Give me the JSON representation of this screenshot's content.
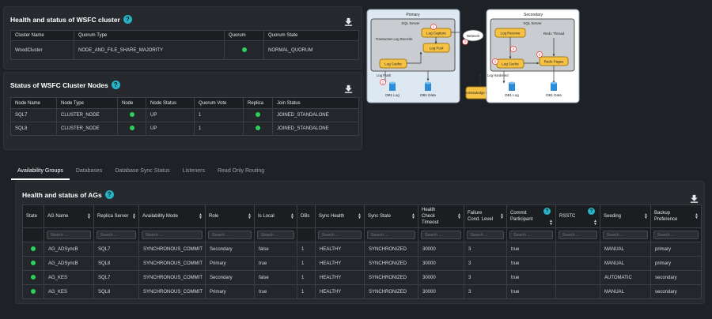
{
  "wsfc_cluster": {
    "title": "Health and status of WSFC cluster",
    "help": "?",
    "columns": [
      "Cluster Name",
      "Quorum Type",
      "Quorum",
      "Quorum State"
    ],
    "row": {
      "name": "WoodCluster",
      "quorum_type": "NODE_AND_FILE_SHARE_MAJORITY",
      "quorum_state": "NORMAL_QUORUM"
    }
  },
  "cluster_nodes": {
    "title": "Status of WSFC Cluster Nodes",
    "help": "?",
    "columns": [
      "Node Name",
      "Node Type",
      "Node",
      "Node Status",
      "Quorum Vote",
      "Replica",
      "Join Status"
    ],
    "rows": [
      {
        "name": "SQL7",
        "type": "CLUSTER_NODE",
        "status": "UP",
        "vote": "1",
        "join": "JOINED_STANDALONE"
      },
      {
        "name": "SQL8",
        "type": "CLUSTER_NODE",
        "status": "UP",
        "vote": "1",
        "join": "JOINED_STANDALONE"
      }
    ]
  },
  "diagram": {
    "primary": {
      "title": "Primary",
      "server": "SQL Server",
      "txn": "Transaction Log Records",
      "log_capture": "Log Capture",
      "log_pool": "Log Pool",
      "log_cache": "Log Cache",
      "log_flush": "Log Flush",
      "db1_log": "DB1 Log",
      "db1_data": "DB1 Data"
    },
    "network": "Network",
    "ack": "Acknowledge Commit",
    "secondary": {
      "title": "Secondary",
      "server": "SQL Server",
      "log_receive": "Log Receive",
      "redo_thread": "Redo Thread",
      "log_cache": "Log Cache",
      "redo_pages": "Redo Pages",
      "log_hardened": "Log Hardened",
      "db1_log": "DB1 Log",
      "db1_data": "DB1 Data"
    },
    "steps": [
      "1",
      "2",
      "3",
      "4",
      "5",
      "6"
    ]
  },
  "tabs": [
    "Availability Groups",
    "Databases",
    "Database Sync Status",
    "Listeners",
    "Read Only Routing"
  ],
  "ags": {
    "title": "Health and status of AGs",
    "help": "?",
    "columns": [
      "State",
      "AG Name",
      "Replica Server",
      "Availability Mode",
      "Role",
      "Is Local",
      "DBs",
      "Sync Health",
      "Sync State",
      "Health Check Timeout",
      "Failure Cond. Level",
      "Commit Participant",
      "RSSTC",
      "Seeding",
      "Backup Preference"
    ],
    "search_placeholder": "Search ...",
    "rows": [
      {
        "name": "AG_ADSyncB",
        "server": "SQL7",
        "mode": "SYNCHRONOUS_COMMIT",
        "role": "Secondary",
        "local": "false",
        "dbs": "1",
        "health": "HEALTHY",
        "sync": "SYNCHRONIZED",
        "timeout": "30000",
        "level": "3",
        "commit": "true",
        "rsstc": "",
        "seeding": "MANUAL",
        "backup": "primary"
      },
      {
        "name": "AG_ADSyncB",
        "server": "SQL8",
        "mode": "SYNCHRONOUS_COMMIT",
        "role": "Primary",
        "local": "true",
        "dbs": "1",
        "health": "HEALTHY",
        "sync": "SYNCHRONIZED",
        "timeout": "30000",
        "level": "3",
        "commit": "true",
        "rsstc": "",
        "seeding": "MANUAL",
        "backup": "primary"
      },
      {
        "name": "AG_KES",
        "server": "SQL7",
        "mode": "SYNCHRONOUS_COMMIT",
        "role": "Secondary",
        "local": "false",
        "dbs": "1",
        "health": "HEALTHY",
        "sync": "SYNCHRONIZED",
        "timeout": "30000",
        "level": "3",
        "commit": "true",
        "rsstc": "",
        "seeding": "AUTOMATIC",
        "backup": "secondary"
      },
      {
        "name": "AG_KES",
        "server": "SQL8",
        "mode": "SYNCHRONOUS_COMMIT",
        "role": "Primary",
        "local": "true",
        "dbs": "1",
        "health": "HEALTHY",
        "sync": "SYNCHRONIZED",
        "timeout": "30000",
        "level": "3",
        "commit": "true",
        "rsstc": "",
        "seeding": "MANUAL",
        "backup": "secondary"
      }
    ]
  }
}
